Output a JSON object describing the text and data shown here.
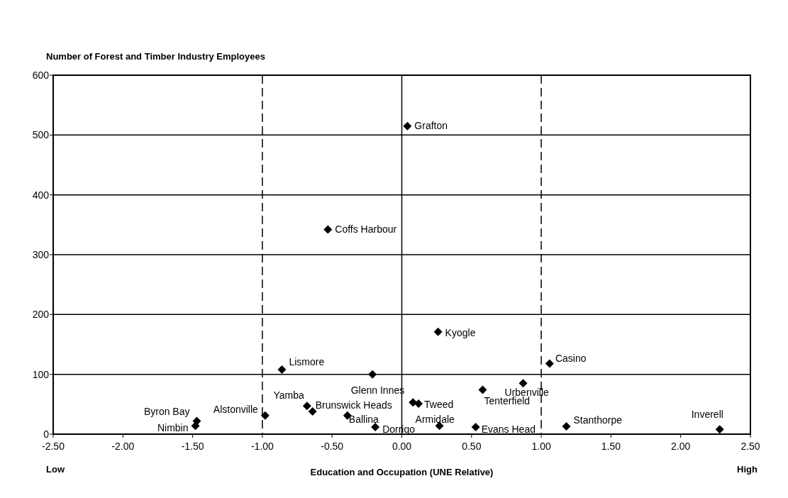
{
  "chart_data": {
    "type": "scatter",
    "title": "Number of Forest and Timber Industry Employees",
    "xlabel": "Education and Occupation (UNE Relative)",
    "x": [
      0.04,
      -0.53,
      -0.86,
      -0.21,
      -1.47,
      -1.48,
      -0.98,
      -0.68,
      -0.64,
      -0.39,
      -0.19,
      0.08,
      0.12,
      0.58,
      0.87,
      0.26,
      1.06,
      0.27,
      0.53,
      1.18,
      2.28
    ],
    "values": [
      515,
      342,
      108,
      100,
      22,
      14,
      31,
      47,
      38,
      31,
      12,
      53,
      51,
      74,
      85,
      171,
      118,
      14,
      12,
      13,
      8
    ],
    "color": "#000000",
    "marker": "diamond",
    "xlim": [
      -2.5,
      2.5
    ],
    "xticks": [
      {
        "value": -2.5,
        "label": "-2.50"
      },
      {
        "value": -2,
        "label": "-2.00"
      },
      {
        "value": -1.5,
        "label": "-1.50"
      },
      {
        "value": -1,
        "label": "-1.00"
      },
      {
        "value": -0.5,
        "label": "-0.50"
      },
      {
        "value": 0,
        "label": "0.00"
      },
      {
        "value": 0.5,
        "label": "0.50"
      },
      {
        "value": 1,
        "label": "1.00"
      },
      {
        "value": 1.5,
        "label": "1.50"
      },
      {
        "value": 2,
        "label": "2.00"
      },
      {
        "value": 2.5,
        "label": "2.50"
      }
    ],
    "ylim": [
      0,
      600
    ],
    "yticks": [
      0,
      100,
      200,
      300,
      400,
      500,
      600
    ],
    "grid": "y",
    "ref_lines": [
      {
        "axis": "x",
        "value": -1,
        "line_style": "dashed"
      },
      {
        "axis": "x",
        "value": 0,
        "line_style": "solid"
      },
      {
        "axis": "x",
        "value": 1,
        "line_style": "dashed"
      }
    ],
    "annotations": [
      {
        "text": "Grafton",
        "x": 0.04,
        "y": 515
      },
      {
        "text": "Coffs Harbour",
        "x": -0.53,
        "y": 342
      },
      {
        "text": "Lismore",
        "x": -0.86,
        "y": 108
      },
      {
        "text": "Byron Bay",
        "x": -1.47,
        "y": 22
      },
      {
        "text": "Nimbin",
        "x": -1.48,
        "y": 14
      },
      {
        "text": "Alstonville",
        "x": -0.98,
        "y": 31
      },
      {
        "text": "Yamba",
        "x": -0.68,
        "y": 47
      },
      {
        "text": "Brunswick Heads",
        "x": -0.64,
        "y": 38
      },
      {
        "text": "Ballina",
        "x": -0.39,
        "y": 31
      },
      {
        "text": "Dorrigo",
        "x": -0.19,
        "y": 12
      },
      {
        "text": "Glenn Innes",
        "x": 0.08,
        "y": 53
      },
      {
        "text": "Tweed",
        "x": 0.12,
        "y": 51
      },
      {
        "text": "Tenterfield",
        "x": 0.58,
        "y": 74
      },
      {
        "text": "Urbenville",
        "x": 0.87,
        "y": 85
      },
      {
        "text": "Kyogle",
        "x": 0.26,
        "y": 171
      },
      {
        "text": "Casino",
        "x": 1.06,
        "y": 118
      },
      {
        "text": "Armidale",
        "x": 0.27,
        "y": 14
      },
      {
        "text": "Evans Head",
        "x": 0.53,
        "y": 12
      },
      {
        "text": "Stanthorpe",
        "x": 1.18,
        "y": 13
      },
      {
        "text": "Inverell",
        "x": 2.28,
        "y": 8
      },
      "Low",
      "High"
    ]
  }
}
